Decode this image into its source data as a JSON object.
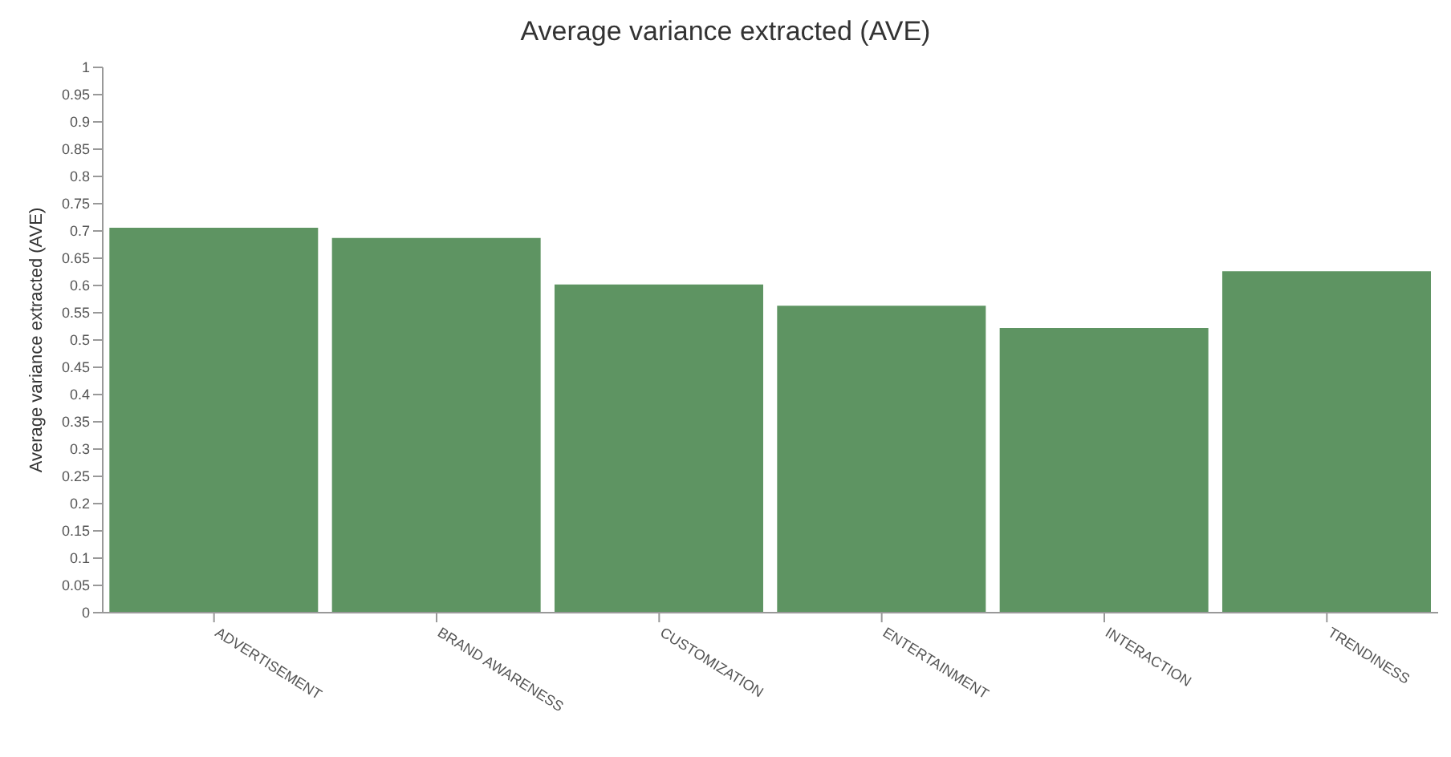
{
  "chart_data": {
    "type": "bar",
    "title": "Average variance extracted (AVE)",
    "ylabel": "Average variance extracted (AVE)",
    "categories": [
      "ADVERTISEMENT",
      "BRAND AWARENESS",
      "CUSTOMIZATION",
      "ENTERTAINMENT",
      "INTERACTION",
      "TRENDINESS"
    ],
    "values": [
      0.706,
      0.687,
      0.602,
      0.563,
      0.522,
      0.626
    ],
    "color": "#5e9462",
    "ylim": [
      0,
      1
    ],
    "yticks": [
      0,
      0.05,
      0.1,
      0.15,
      0.2,
      0.25,
      0.3,
      0.35,
      0.4,
      0.45,
      0.5,
      0.55,
      0.6,
      0.65,
      0.7,
      0.75,
      0.8,
      0.85,
      0.9,
      0.95,
      1
    ],
    "grid": false,
    "legend": false
  }
}
